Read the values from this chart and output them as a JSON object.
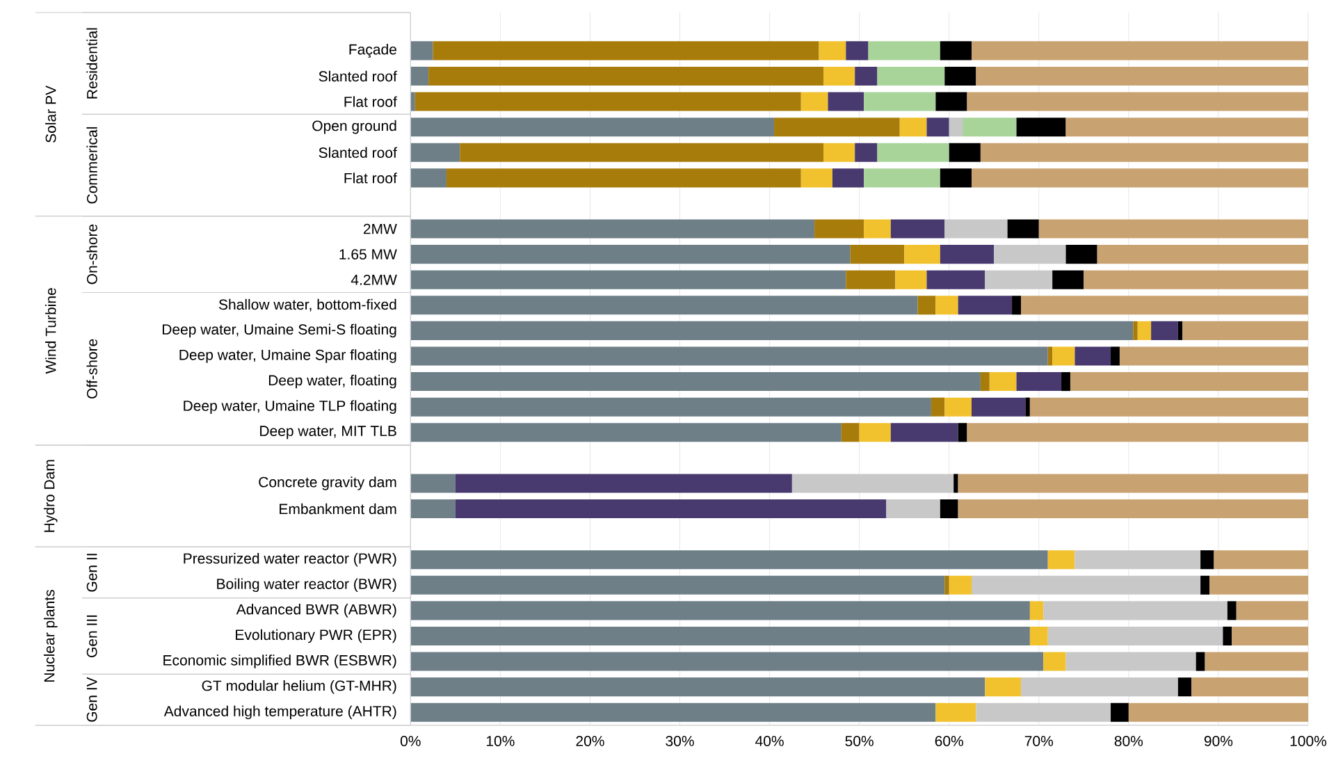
{
  "chart_data": {
    "type": "bar",
    "orientation": "horizontal",
    "stacked": true,
    "grid": "x",
    "categories": [
      "Façade",
      "Slanted roof",
      "Flat roof",
      "Open ground",
      "Slanted roof",
      "Flat roof",
      null,
      "2MW",
      "1.65 MW",
      "4.2MW",
      "Shallow water, bottom-fixed",
      "Deep water, Umaine Semi-S floating",
      "Deep water, Umaine Spar floating",
      "Deep water, floating",
      "Deep water, Umaine TLP floating",
      "Deep water, MIT TLB",
      null,
      "Concrete gravity dam",
      "Embankment dam",
      null,
      "Pressurized water reactor (PWR)",
      "Boiling water reactor (BWR)",
      "Advanced BWR (ABWR)",
      "Evolutionary PWR (EPR)",
      "Economic simplified BWR (ESBWR)",
      "GT modular helium (GT-MHR)",
      "Advanced high temperature (AHTR)"
    ],
    "series": [
      {
        "color": "#6e7f88",
        "values": [
          2.5,
          2,
          0.5,
          40.5,
          5.5,
          4,
          null,
          45,
          49,
          48.5,
          56.5,
          80.5,
          71,
          63.5,
          58,
          48,
          null,
          5,
          5,
          null,
          71,
          59.5,
          69,
          69,
          70.5,
          64,
          58.5
        ]
      },
      {
        "color": "#a87c0a",
        "values": [
          43,
          44,
          43,
          14,
          40.5,
          39.5,
          null,
          5.5,
          6,
          5.5,
          2,
          0.5,
          0.5,
          1,
          1.5,
          2,
          null,
          null,
          null,
          null,
          null,
          0.5,
          null,
          null,
          null,
          null,
          null
        ]
      },
      {
        "color": "#f2c12e",
        "values": [
          3,
          3.5,
          3,
          3,
          3.5,
          3.5,
          null,
          3,
          4,
          3.5,
          2.5,
          1.5,
          2.5,
          3,
          3,
          3.5,
          null,
          null,
          null,
          null,
          3,
          2.5,
          1.5,
          2,
          2.5,
          4,
          4.5
        ]
      },
      {
        "color": "#48396f",
        "values": [
          2.5,
          2.5,
          4,
          2.5,
          2.5,
          3.5,
          null,
          6,
          6,
          6.5,
          6,
          3,
          4,
          5,
          6,
          7.5,
          null,
          37.5,
          48,
          null,
          null,
          null,
          null,
          null,
          null,
          null,
          null
        ]
      },
      {
        "color": "#c8c8c8",
        "values": [
          null,
          null,
          null,
          1.5,
          null,
          null,
          null,
          7,
          8,
          7.5,
          null,
          null,
          null,
          null,
          null,
          null,
          null,
          18,
          6,
          null,
          14,
          25.5,
          20.5,
          19.5,
          14.5,
          17.5,
          15
        ]
      },
      {
        "color": "#a8d49a",
        "values": [
          8,
          7.5,
          8,
          6,
          8,
          8.5,
          null,
          null,
          null,
          null,
          null,
          null,
          null,
          null,
          null,
          null,
          null,
          null,
          null,
          null,
          null,
          null,
          null,
          null,
          null,
          null,
          null
        ]
      },
      {
        "color": "#000000",
        "values": [
          3.5,
          3.5,
          3.5,
          5.5,
          3.5,
          3.5,
          null,
          3.5,
          3.5,
          3.5,
          1,
          0.5,
          1,
          1,
          0.5,
          1,
          null,
          0.5,
          2,
          null,
          1.5,
          1,
          1,
          1,
          1,
          1.5,
          2
        ]
      },
      {
        "color": "#c9a271",
        "values": [
          37.5,
          37,
          38,
          27,
          36.5,
          37.5,
          null,
          30,
          23.5,
          25,
          32,
          14,
          21,
          26.5,
          31,
          38,
          null,
          39,
          39,
          null,
          10.5,
          11,
          8,
          8.5,
          11.5,
          13,
          20
        ]
      }
    ],
    "xlim": [
      0,
      100
    ],
    "xticks": [
      {
        "value": 0,
        "label": "0%"
      },
      {
        "value": 10,
        "label": "10%"
      },
      {
        "value": 20,
        "label": "20%"
      },
      {
        "value": 30,
        "label": "30%"
      },
      {
        "value": 40,
        "label": "40%"
      },
      {
        "value": 50,
        "label": "50%"
      },
      {
        "value": 60,
        "label": "60%"
      },
      {
        "value": 70,
        "label": "70%"
      },
      {
        "value": 80,
        "label": "80%"
      },
      {
        "value": 90,
        "label": "90%"
      },
      {
        "value": 100,
        "label": "100%"
      }
    ],
    "annotations": [
      "Solar PV",
      "Residential",
      "Commerical",
      "Wind Turbine",
      "On-shore",
      "Off-shore",
      "Hydro Dam",
      "Nuclear plants",
      "Gen II",
      "Gen III",
      "Gen IV"
    ]
  }
}
